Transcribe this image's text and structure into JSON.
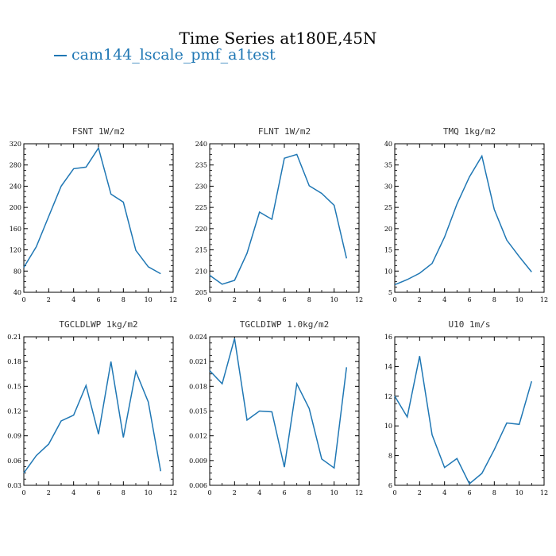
{
  "title": "Time Series at180E,45N",
  "legend": [
    {
      "label": "cam144_lscale_pmf_a1test",
      "color": "#1f77b4"
    }
  ],
  "chart_data": [
    {
      "type": "line",
      "title": "FSNT   1W/m2",
      "x": [
        0,
        1,
        2,
        3,
        4,
        5,
        6,
        7,
        8,
        9,
        10,
        11
      ],
      "series": [
        {
          "name": "cam144_lscale_pmf_a1test",
          "values": [
            87,
            126,
            183,
            240,
            273,
            276,
            312,
            225,
            210,
            119,
            88,
            75
          ]
        }
      ],
      "xlim": [
        0,
        12
      ],
      "ylim": [
        40,
        320
      ],
      "xticks": [
        0,
        2,
        4,
        6,
        8,
        10,
        12
      ],
      "yticks": [
        40,
        80,
        120,
        160,
        200,
        240,
        280,
        320
      ],
      "yticklabels": [
        "40",
        "80",
        "120",
        "160",
        "200",
        "240",
        "280",
        "320"
      ]
    },
    {
      "type": "line",
      "title": "FLNT   1W/m2",
      "x": [
        0,
        1,
        2,
        3,
        4,
        5,
        6,
        7,
        8,
        9,
        10,
        11
      ],
      "series": [
        {
          "name": "cam144_lscale_pmf_a1test",
          "values": [
            209.0,
            206.9,
            207.8,
            214.2,
            223.9,
            222.2,
            236.6,
            237.5,
            230.1,
            228.3,
            225.5,
            213.0
          ]
        }
      ],
      "xlim": [
        0,
        12
      ],
      "ylim": [
        205,
        240
      ],
      "xticks": [
        0,
        2,
        4,
        6,
        8,
        10,
        12
      ],
      "yticks": [
        205,
        210,
        215,
        220,
        225,
        230,
        235,
        240
      ],
      "yticklabels": [
        "205",
        "210",
        "215",
        "220",
        "225",
        "230",
        "235",
        "240"
      ]
    },
    {
      "type": "line",
      "title": "TMQ   1kg/m2",
      "x": [
        0,
        1,
        2,
        3,
        4,
        5,
        6,
        7,
        8,
        9,
        10,
        11
      ],
      "series": [
        {
          "name": "cam144_lscale_pmf_a1test",
          "values": [
            6.8,
            8.0,
            9.5,
            11.8,
            18.0,
            25.8,
            32.2,
            37.1,
            24.5,
            17.3,
            13.4,
            9.8
          ]
        }
      ],
      "xlim": [
        0,
        12
      ],
      "ylim": [
        5,
        40
      ],
      "xticks": [
        0,
        2,
        4,
        6,
        8,
        10,
        12
      ],
      "yticks": [
        5,
        10,
        15,
        20,
        25,
        30,
        35,
        40
      ],
      "yticklabels": [
        "5",
        "10",
        "15",
        "20",
        "25",
        "30",
        "35",
        "40"
      ]
    },
    {
      "type": "line",
      "title": "TGCLDLWP   1kg/m2",
      "x": [
        0,
        1,
        2,
        3,
        4,
        5,
        6,
        7,
        8,
        9,
        10,
        11
      ],
      "series": [
        {
          "name": "cam144_lscale_pmf_a1test",
          "values": [
            0.045,
            0.066,
            0.08,
            0.108,
            0.115,
            0.151,
            0.092,
            0.18,
            0.088,
            0.168,
            0.131,
            0.047
          ]
        }
      ],
      "xlim": [
        0,
        12
      ],
      "ylim": [
        0.03,
        0.21
      ],
      "xticks": [
        0,
        2,
        4,
        6,
        8,
        10,
        12
      ],
      "yticks": [
        0.03,
        0.06,
        0.09,
        0.12,
        0.15,
        0.18,
        0.21
      ],
      "yticklabels": [
        "0.03",
        "0.06",
        "0.09",
        "0.12",
        "0.15",
        "0.18",
        "0.21"
      ]
    },
    {
      "type": "line",
      "title": "TGCLDIWP   1.0kg/m2",
      "x": [
        0,
        1,
        2,
        3,
        4,
        5,
        6,
        7,
        8,
        9,
        10,
        11
      ],
      "series": [
        {
          "name": "cam144_lscale_pmf_a1test",
          "values": [
            0.0199,
            0.0183,
            0.0238,
            0.0139,
            0.015,
            0.0149,
            0.0082,
            0.0183,
            0.0153,
            0.0092,
            0.0081,
            0.0203
          ]
        }
      ],
      "xlim": [
        0,
        12
      ],
      "ylim": [
        0.006,
        0.024
      ],
      "xticks": [
        0,
        2,
        4,
        6,
        8,
        10,
        12
      ],
      "yticks": [
        0.006,
        0.009,
        0.012,
        0.015,
        0.018,
        0.021,
        0.024
      ],
      "yticklabels": [
        "0.006",
        "0.009",
        "0.012",
        "0.015",
        "0.018",
        "0.021",
        "0.024"
      ]
    },
    {
      "type": "line",
      "title": "U10   1m/s",
      "x": [
        0,
        1,
        2,
        3,
        4,
        5,
        6,
        7,
        8,
        9,
        10,
        11
      ],
      "series": [
        {
          "name": "cam144_lscale_pmf_a1test",
          "values": [
            12.0,
            10.6,
            14.7,
            9.4,
            7.2,
            7.8,
            6.1,
            6.8,
            8.4,
            10.2,
            10.1,
            13.0
          ]
        }
      ],
      "xlim": [
        0,
        12
      ],
      "ylim": [
        6,
        16
      ],
      "xticks": [
        0,
        2,
        4,
        6,
        8,
        10,
        12
      ],
      "yticks": [
        6,
        8,
        10,
        12,
        14,
        16
      ],
      "yticklabels": [
        "6",
        "8",
        "10",
        "12",
        "14",
        "16"
      ]
    }
  ]
}
